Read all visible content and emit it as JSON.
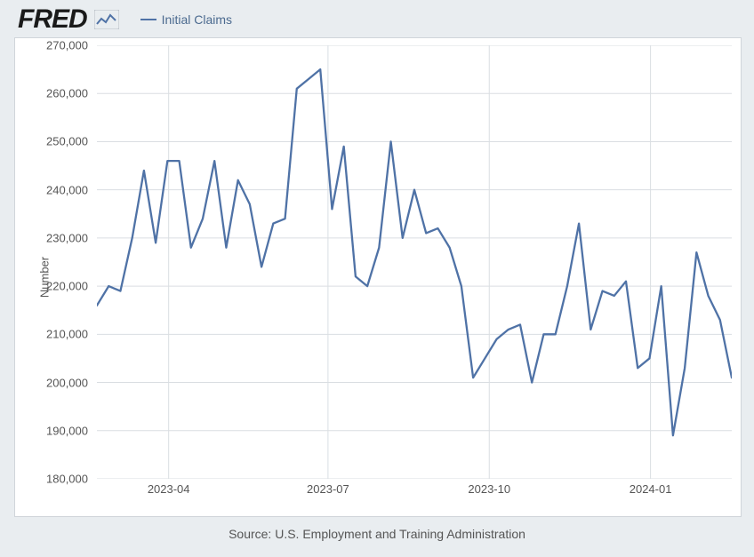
{
  "logo": {
    "text": "FRED"
  },
  "legend": {
    "label": "Initial Claims",
    "color": "#4f72a6"
  },
  "chart": {
    "type": "line",
    "y_axis_label": "Number",
    "source": "Source: U.S. Employment and Training Administration",
    "ylim": [
      180000,
      270000
    ],
    "ytick_step": 10000,
    "ytick_labels": [
      "180,000",
      "190,000",
      "200,000",
      "210,000",
      "220,000",
      "230,000",
      "240,000",
      "250,000",
      "260,000",
      "270,000"
    ],
    "x_start": "2023-02-18",
    "x_end": "2024-02-17",
    "x_ticks": [
      {
        "label": "2023-04",
        "pos": 0.113
      },
      {
        "label": "2023-07",
        "pos": 0.364
      },
      {
        "label": "2023-10",
        "pos": 0.618
      },
      {
        "label": "2024-01",
        "pos": 0.872
      }
    ],
    "line_color": "#4f72a6",
    "line_width": 2.3,
    "grid_color": "#dadee2",
    "background_color": "#ffffff",
    "page_background": "#e9edf0",
    "label_fontsize": 13,
    "values": [
      216000,
      220000,
      219000,
      230000,
      244000,
      229000,
      246000,
      246000,
      228000,
      234000,
      246000,
      228000,
      242000,
      237000,
      224000,
      233000,
      234000,
      261000,
      263000,
      265000,
      236000,
      249000,
      222000,
      220000,
      228000,
      250000,
      230000,
      240000,
      231000,
      232000,
      228000,
      220000,
      201000,
      205000,
      209000,
      211000,
      212000,
      200000,
      210000,
      210000,
      220000,
      233000,
      211000,
      219000,
      218000,
      221000,
      203000,
      205000,
      220000,
      189000,
      203000,
      227000,
      218000,
      213000,
      201000
    ]
  }
}
